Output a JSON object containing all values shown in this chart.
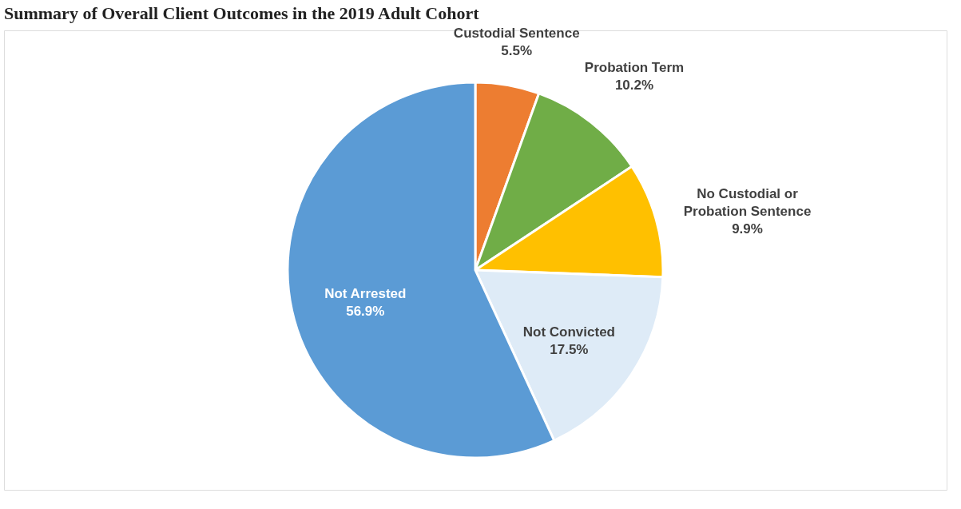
{
  "chart_data": {
    "type": "pie",
    "title": "Summary of Overall Client Outcomes in the 2019 Adult Cohort",
    "categories": [
      "Custodial Sentence",
      "Probation Term",
      "No Custodial or Probation Sentence",
      "Not Convicted",
      "Not Arrested"
    ],
    "values": [
      5.5,
      10.2,
      9.9,
      17.5,
      56.9
    ],
    "colors": [
      "#ed7d31",
      "#70ad47",
      "#ffc000",
      "#deebf7",
      "#5b9bd5"
    ],
    "value_labels": [
      "5.5%",
      "10.2%",
      "9.9%",
      "17.5%",
      "56.9%"
    ]
  }
}
